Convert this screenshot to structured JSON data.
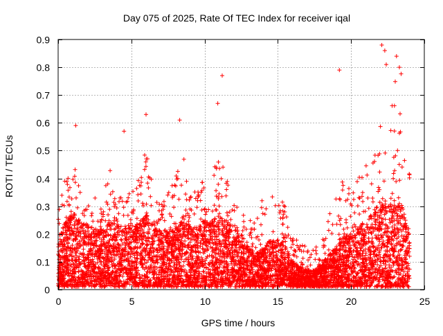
{
  "chart_data": {
    "type": "scatter",
    "title": "Day 075 of 2025, Rate Of TEC Index for receiver iqal",
    "xlabel": "GPS time / hours",
    "ylabel": "ROTI / TECUs",
    "xlim": [
      0,
      25
    ],
    "ylim": [
      0,
      0.9
    ],
    "xticks": [
      "0",
      "5",
      "10",
      "15",
      "20",
      "25"
    ],
    "yticks": [
      "0",
      "0.1",
      "0.2",
      "0.3",
      "0.4",
      "0.5",
      "0.6",
      "0.7",
      "0.8",
      "0.9"
    ],
    "grid": true,
    "marker": "+",
    "color": "#ff0000",
    "envelope_hours": [
      0,
      0.5,
      1,
      1.5,
      2,
      2.5,
      3,
      3.5,
      4,
      4.5,
      5,
      5.5,
      6,
      6.5,
      7,
      7.5,
      8,
      8.5,
      9,
      9.5,
      10,
      10.5,
      11,
      11.5,
      12,
      12.5,
      13,
      13.5,
      14,
      14.5,
      15,
      15.5,
      16,
      16.5,
      17,
      17.5,
      18,
      18.5,
      19,
      19.5,
      20,
      20.5,
      21,
      21.5,
      22,
      22.5,
      23,
      23.5,
      24
    ],
    "envelope_upper": [
      0.3,
      0.4,
      0.5,
      0.35,
      0.3,
      0.35,
      0.3,
      0.45,
      0.3,
      0.4,
      0.35,
      0.4,
      0.55,
      0.35,
      0.3,
      0.35,
      0.4,
      0.5,
      0.35,
      0.4,
      0.4,
      0.45,
      0.5,
      0.4,
      0.35,
      0.3,
      0.25,
      0.25,
      0.35,
      0.35,
      0.35,
      0.3,
      0.2,
      0.18,
      0.15,
      0.15,
      0.2,
      0.3,
      0.35,
      0.4,
      0.35,
      0.4,
      0.45,
      0.5,
      0.6,
      0.6,
      0.75,
      0.8,
      0.45
    ],
    "envelope_typical": [
      0.15,
      0.2,
      0.22,
      0.2,
      0.18,
      0.18,
      0.17,
      0.2,
      0.18,
      0.18,
      0.18,
      0.2,
      0.22,
      0.18,
      0.17,
      0.17,
      0.18,
      0.2,
      0.18,
      0.18,
      0.2,
      0.2,
      0.22,
      0.2,
      0.18,
      0.16,
      0.12,
      0.1,
      0.12,
      0.14,
      0.14,
      0.12,
      0.08,
      0.06,
      0.05,
      0.05,
      0.07,
      0.1,
      0.12,
      0.15,
      0.15,
      0.18,
      0.2,
      0.22,
      0.25,
      0.25,
      0.25,
      0.25,
      0.15
    ],
    "outliers": [
      {
        "x": 10.9,
        "y": 0.67
      },
      {
        "x": 11.2,
        "y": 0.77
      },
      {
        "x": 19.2,
        "y": 0.79
      },
      {
        "x": 22.1,
        "y": 0.88
      },
      {
        "x": 22.3,
        "y": 0.86
      },
      {
        "x": 22.4,
        "y": 0.81
      },
      {
        "x": 23.1,
        "y": 0.84
      },
      {
        "x": 23.3,
        "y": 0.8
      },
      {
        "x": 8.3,
        "y": 0.61
      },
      {
        "x": 6.0,
        "y": 0.63
      },
      {
        "x": 4.5,
        "y": 0.57
      },
      {
        "x": 1.2,
        "y": 0.59
      }
    ],
    "point_count": 6000
  }
}
